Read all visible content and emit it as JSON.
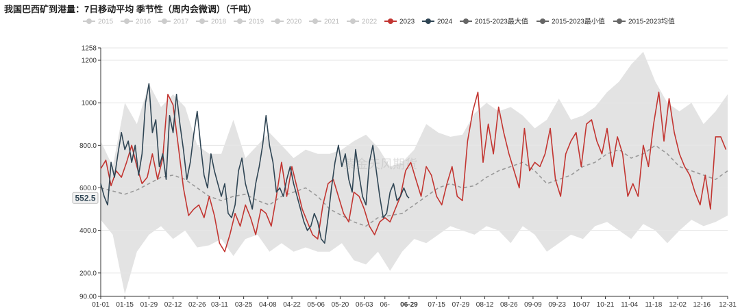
{
  "title": "我国巴西矿到港量：7日移动平均 季节性（周内会微调）（千吨）",
  "watermark": "紫金天风期货",
  "chart_data": {
    "type": "line",
    "title": "我国巴西矿到港量：7日移动平均 季节性（周内会微调）（千吨）",
    "unit": "千吨",
    "ylim": [
      90,
      1258
    ],
    "y_ticks": [
      "90.00",
      "200.0",
      "400.0",
      "600.0",
      "800.0",
      "1000",
      "1200",
      "1258"
    ],
    "y_tick_values": [
      90,
      200,
      400,
      600,
      800,
      1000,
      1200,
      1258
    ],
    "x_ticks": [
      "01-01",
      "01-15",
      "01-29",
      "02-12",
      "02-26",
      "03-11",
      "03-25",
      "04-08",
      "04-22",
      "05-06",
      "05-20",
      "06-03",
      "06-",
      "06-29",
      "07-15",
      "07-29",
      "08-12",
      "08-26",
      "09-09",
      "09-23",
      "10-07",
      "10-21",
      "11-04",
      "11-18",
      "12-02",
      "12-16",
      "12-31"
    ],
    "x_tick_days": [
      1,
      15,
      29,
      43,
      57,
      70,
      84,
      98,
      112,
      126,
      140,
      154,
      166,
      180,
      196,
      210,
      224,
      238,
      252,
      266,
      280,
      294,
      308,
      322,
      336,
      350,
      365
    ],
    "highlight_x": "06-29",
    "highlight_y": "552.5",
    "highlight_y_value": 552.5,
    "grid": true,
    "legend_position": "top",
    "legend": [
      {
        "name": "2015",
        "color": "#cccccc",
        "active": false
      },
      {
        "name": "2016",
        "color": "#cccccc",
        "active": false
      },
      {
        "name": "2017",
        "color": "#cccccc",
        "active": false
      },
      {
        "name": "2018",
        "color": "#cccccc",
        "active": false
      },
      {
        "name": "2019",
        "color": "#cccccc",
        "active": false
      },
      {
        "name": "2020",
        "color": "#cccccc",
        "active": false
      },
      {
        "name": "2021",
        "color": "#cccccc",
        "active": false
      },
      {
        "name": "2022",
        "color": "#cccccc",
        "active": false
      },
      {
        "name": "2023",
        "color": "#c23531",
        "active": true
      },
      {
        "name": "2024",
        "color": "#2f4554",
        "active": true
      },
      {
        "name": "2015-2023最大值",
        "color": "#666666",
        "active": true
      },
      {
        "name": "2015-2023最小值",
        "color": "#666666",
        "active": true
      },
      {
        "name": "2015-2023均值",
        "color": "#666666",
        "active": true
      }
    ],
    "band_max": {
      "name": "2015-2023最大值",
      "x": [
        1,
        8,
        15,
        22,
        29,
        36,
        43,
        50,
        57,
        64,
        71,
        78,
        85,
        92,
        99,
        106,
        113,
        120,
        127,
        134,
        141,
        148,
        155,
        162,
        169,
        176,
        183,
        190,
        197,
        204,
        211,
        218,
        225,
        232,
        239,
        246,
        253,
        260,
        267,
        274,
        281,
        288,
        295,
        302,
        309,
        316,
        323,
        330,
        337,
        344,
        351,
        358,
        365
      ],
      "values": [
        820,
        700,
        1000,
        900,
        1090,
        980,
        1040,
        980,
        800,
        760,
        760,
        920,
        740,
        800,
        860,
        800,
        740,
        780,
        760,
        760,
        780,
        820,
        850,
        790,
        700,
        720,
        780,
        900,
        860,
        840,
        850,
        950,
        1000,
        960,
        980,
        940,
        880,
        920,
        1020,
        920,
        940,
        980,
        1050,
        1100,
        1180,
        1240,
        1100,
        1000,
        960,
        1000,
        900,
        960,
        1040
      ]
    },
    "band_min": {
      "name": "2015-2023最小值",
      "x": [
        1,
        8,
        15,
        22,
        29,
        36,
        43,
        50,
        57,
        64,
        71,
        78,
        85,
        92,
        99,
        106,
        113,
        120,
        127,
        134,
        141,
        148,
        155,
        162,
        169,
        176,
        183,
        190,
        197,
        204,
        211,
        218,
        225,
        232,
        239,
        246,
        253,
        260,
        267,
        274,
        281,
        288,
        295,
        302,
        309,
        316,
        323,
        330,
        337,
        344,
        351,
        358,
        365
      ],
      "values": [
        450,
        380,
        100,
        300,
        380,
        420,
        360,
        400,
        320,
        330,
        360,
        280,
        360,
        380,
        300,
        340,
        300,
        320,
        300,
        300,
        340,
        260,
        240,
        300,
        210,
        300,
        360,
        340,
        380,
        420,
        400,
        380,
        420,
        400,
        340,
        420,
        380,
        300,
        340,
        380,
        360,
        420,
        440,
        400,
        360,
        430,
        400,
        340,
        400,
        450,
        420,
        440,
        470
      ]
    },
    "series": [
      {
        "name": "2015-2023均值",
        "color": "#999999",
        "dashed": true,
        "x": [
          1,
          8,
          15,
          22,
          29,
          36,
          43,
          50,
          57,
          64,
          71,
          78,
          85,
          92,
          99,
          106,
          113,
          120,
          127,
          134,
          141,
          148,
          155,
          162,
          169,
          176,
          183,
          190,
          197,
          204,
          211,
          218,
          225,
          232,
          239,
          246,
          253,
          260,
          267,
          274,
          281,
          288,
          295,
          302,
          309,
          316,
          323,
          330,
          337,
          344,
          351,
          358,
          365
        ],
        "values": [
          600,
          585,
          570,
          590,
          620,
          650,
          660,
          640,
          600,
          560,
          540,
          560,
          570,
          540,
          520,
          560,
          580,
          600,
          560,
          500,
          470,
          440,
          420,
          460,
          470,
          480,
          520,
          560,
          600,
          620,
          600,
          610,
          650,
          680,
          700,
          720,
          680,
          620,
          640,
          660,
          700,
          720,
          760,
          780,
          740,
          760,
          800,
          760,
          700,
          680,
          660,
          640,
          680
        ]
      },
      {
        "name": "2023",
        "color": "#c23531",
        "x": [
          1,
          4,
          7,
          10,
          13,
          16,
          19,
          22,
          25,
          28,
          31,
          34,
          37,
          40,
          43,
          46,
          49,
          52,
          55,
          58,
          61,
          64,
          67,
          70,
          73,
          76,
          79,
          82,
          85,
          88,
          91,
          94,
          97,
          100,
          103,
          106,
          109,
          112,
          115,
          118,
          121,
          124,
          127,
          130,
          133,
          136,
          139,
          142,
          145,
          148,
          151,
          154,
          157,
          160,
          163,
          166,
          169,
          172,
          175,
          178,
          181,
          184,
          187,
          190,
          193,
          196,
          199,
          202,
          205,
          208,
          211,
          214,
          217,
          220,
          223,
          226,
          229,
          232,
          235,
          238,
          241,
          244,
          247,
          250,
          253,
          256,
          259,
          262,
          265,
          268,
          271,
          274,
          277,
          280,
          283,
          286,
          289,
          292,
          295,
          298,
          301,
          304,
          307,
          310,
          313,
          316,
          319,
          322,
          325,
          328,
          331,
          334,
          337,
          340,
          343,
          346,
          349,
          352,
          355,
          358,
          361,
          364
        ],
        "values": [
          690,
          730,
          610,
          680,
          650,
          720,
          800,
          700,
          620,
          650,
          760,
          640,
          740,
          1040,
          990,
          800,
          600,
          470,
          500,
          520,
          460,
          560,
          470,
          340,
          300,
          380,
          480,
          420,
          520,
          460,
          380,
          500,
          480,
          420,
          560,
          720,
          560,
          700,
          600,
          500,
          440,
          380,
          360,
          520,
          620,
          640,
          560,
          480,
          440,
          580,
          560,
          500,
          420,
          380,
          440,
          460,
          440,
          500,
          560,
          680,
          720,
          640,
          560,
          700,
          660,
          560,
          520,
          620,
          700,
          560,
          540,
          820,
          960,
          1050,
          720,
          900,
          760,
          980,
          860,
          760,
          680,
          600,
          880,
          680,
          720,
          700,
          760,
          880,
          640,
          560,
          760,
          820,
          860,
          700,
          900,
          920,
          820,
          760,
          880,
          700,
          840,
          760,
          560,
          620,
          560,
          800,
          700,
          900,
          1050,
          820,
          1020,
          860,
          760,
          700,
          660,
          580,
          520,
          660,
          500,
          840,
          840,
          780
        ]
      },
      {
        "name": "2024",
        "color": "#2f4554",
        "x": [
          1,
          3,
          5,
          7,
          9,
          11,
          13,
          15,
          17,
          19,
          21,
          23,
          25,
          27,
          29,
          31,
          33,
          35,
          37,
          39,
          41,
          43,
          45,
          47,
          49,
          51,
          53,
          55,
          57,
          59,
          61,
          63,
          65,
          67,
          69,
          71,
          73,
          75,
          77,
          79,
          81,
          83,
          85,
          87,
          89,
          91,
          93,
          95,
          97,
          99,
          101,
          103,
          105,
          107,
          109,
          111,
          113,
          115,
          117,
          119,
          121,
          123,
          125,
          127,
          129,
          131,
          133,
          135,
          137,
          139,
          141,
          143,
          145,
          147,
          149,
          151,
          153,
          155,
          157,
          159,
          161,
          163,
          165,
          167,
          169,
          171,
          173,
          175,
          177,
          179,
          180
        ],
        "values": [
          620,
          560,
          520,
          720,
          650,
          760,
          860,
          780,
          820,
          720,
          800,
          660,
          760,
          1000,
          1090,
          860,
          920,
          700,
          760,
          640,
          940,
          860,
          1040,
          900,
          780,
          640,
          720,
          850,
          960,
          800,
          660,
          600,
          760,
          680,
          620,
          560,
          620,
          480,
          460,
          520,
          680,
          740,
          620,
          560,
          500,
          620,
          700,
          800,
          940,
          800,
          720,
          580,
          600,
          560,
          640,
          700,
          620,
          560,
          500,
          440,
          400,
          420,
          480,
          440,
          360,
          340,
          460,
          600,
          720,
          800,
          700,
          760,
          640,
          580,
          780,
          660,
          560,
          520,
          720,
          800,
          680,
          560,
          460,
          480,
          580,
          620,
          540,
          560,
          600,
          560,
          552.5
        ]
      }
    ]
  }
}
